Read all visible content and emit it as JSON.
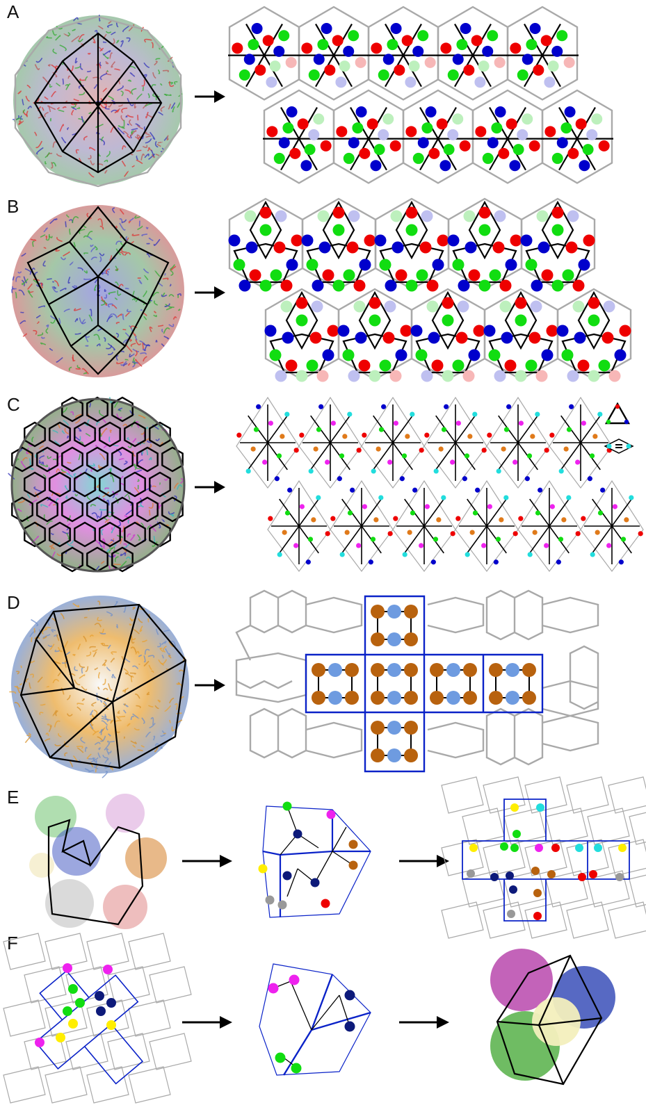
{
  "panels": [
    {
      "id": "A",
      "letter": "A"
    },
    {
      "id": "B",
      "letter": "B"
    },
    {
      "id": "C",
      "letter": "C"
    },
    {
      "id": "D",
      "letter": "D"
    },
    {
      "id": "E",
      "letter": "E"
    },
    {
      "id": "F",
      "letter": "F"
    }
  ],
  "colors": {
    "red": "#ee0000",
    "green": "#11dd11",
    "blue": "#0000cc",
    "pale_red": "#f7b7b7",
    "pale_green": "#bdf0bd",
    "pale_blue": "#bfc0f0",
    "magenta": "#ee22ee",
    "cyan": "#22dddd",
    "orange": "#e07a1a",
    "brown": "#b8620e",
    "steel_blue": "#6e9be0",
    "navy": "#0d1a7a",
    "yellow": "#ffee00",
    "gray_dot": "#999999",
    "lattice_gray": "#a9a9a9",
    "outline_blue": "#0a22c8",
    "protein_orange": "#e8a030",
    "protein_blue": "#6f8fc9"
  },
  "icons": {
    "arrow": "right-arrow-icon",
    "legend_triangle": "trimer-triangle-icon",
    "legend_rhombus": "dimer-rhombus-icon"
  }
}
